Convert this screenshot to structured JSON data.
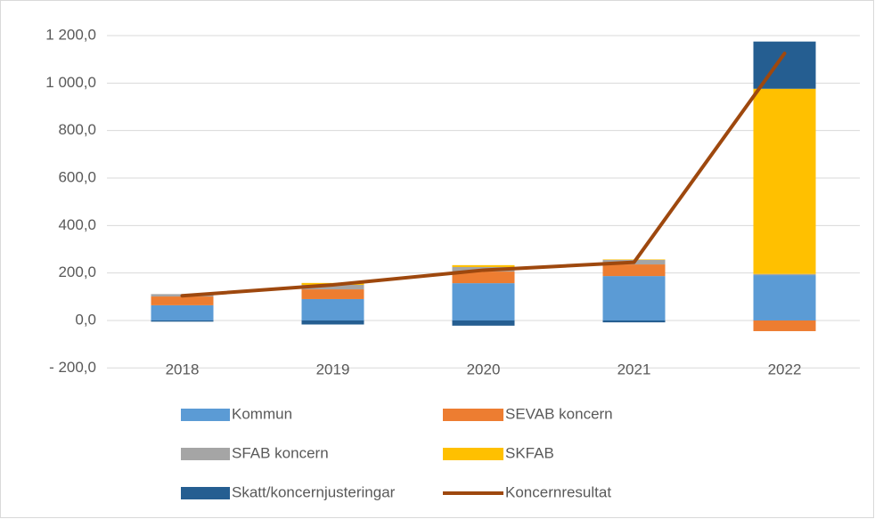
{
  "chart_data": {
    "type": "bar",
    "categories": [
      "2018",
      "2019",
      "2020",
      "2021",
      "2022"
    ],
    "series": [
      {
        "name": "Kommun",
        "type": "bar",
        "color": "#5b9bd5",
        "values": [
          64,
          90,
          157,
          187,
          191
        ]
      },
      {
        "name": "SEVAB koncern",
        "type": "bar",
        "color": "#ed7d31",
        "values": [
          37,
          41,
          49,
          49,
          -45
        ]
      },
      {
        "name": "SFAB koncern",
        "type": "bar",
        "color": "#a5a5a5",
        "values": [
          10,
          19,
          19,
          19,
          5
        ]
      },
      {
        "name": "SKFAB",
        "type": "bar",
        "color": "#ffc000",
        "values": [
          0,
          8,
          8,
          2,
          780
        ]
      },
      {
        "name": "Skatt/koncernjusteringar",
        "type": "bar",
        "color": "#255e91",
        "values": [
          -5,
          -17,
          -22,
          -8,
          199
        ]
      },
      {
        "name": "Koncernresultat",
        "type": "line",
        "color": "#9e480e",
        "values": [
          104,
          150,
          212,
          245,
          1125
        ]
      }
    ],
    "ylim": [
      -200,
      1200
    ],
    "yticks": [
      {
        "value": -200,
        "label": "- 200,0"
      },
      {
        "value": 0,
        "label": "0,0"
      },
      {
        "value": 200,
        "label": "200,0"
      },
      {
        "value": 400,
        "label": "400,0"
      },
      {
        "value": 600,
        "label": "600,0"
      },
      {
        "value": 800,
        "label": "800,0"
      },
      {
        "value": 1000,
        "label": "1 000,0"
      },
      {
        "value": 1200,
        "label": "1 200,0"
      }
    ],
    "grid": true,
    "legend": "bottom"
  }
}
